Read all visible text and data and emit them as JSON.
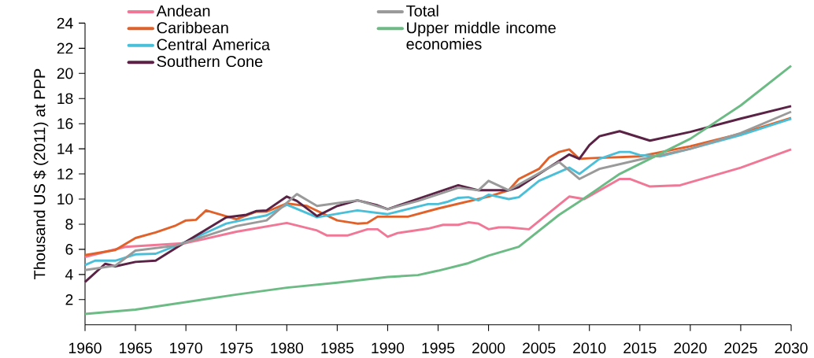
{
  "chart_data": {
    "type": "line",
    "ylabel": "Thousand US $ (2011) at PPP",
    "xlim": [
      1960,
      2030
    ],
    "xticks": [
      1960,
      1965,
      1970,
      1975,
      1980,
      1985,
      1990,
      1995,
      2000,
      2005,
      2010,
      2015,
      2020,
      2025,
      2030
    ],
    "ylim": [
      0,
      24
    ],
    "yticks": [
      2,
      4,
      6,
      8,
      10,
      12,
      14,
      16,
      18,
      20,
      22,
      24
    ],
    "grid": false,
    "legend": "top left",
    "marker": "none",
    "line_style": "solid",
    "series": [
      {
        "name": "Andean",
        "color": "#f07896",
        "x": [
          1960,
          1964,
          1970,
          1975,
          1980,
          1982,
          1983,
          1984,
          1986,
          1988,
          1989,
          1990,
          1991,
          1994,
          1995.5,
          1997,
          1998,
          1999,
          2000,
          2001,
          2002,
          2004,
          2008,
          2009.5,
          2013,
          2014,
          2016,
          2019,
          2025,
          2030
        ],
        "values": [
          5.4,
          6.2,
          6.5,
          7.4,
          8.1,
          7.7,
          7.5,
          7.1,
          7.1,
          7.6,
          7.6,
          7.0,
          7.3,
          7.65,
          7.95,
          7.95,
          8.15,
          8.05,
          7.6,
          7.75,
          7.75,
          7.6,
          10.2,
          10.0,
          11.6,
          11.6,
          11.0,
          11.1,
          12.5,
          13.95
        ]
      },
      {
        "name": "Caribbean",
        "color": "#e0622a",
        "x": [
          1960,
          1963,
          1965,
          1967,
          1969,
          1970,
          1971,
          1972,
          1975,
          1977,
          1978,
          1980,
          1982,
          1985,
          1987,
          1988,
          1989,
          1992,
          1995,
          2000,
          2002,
          2003,
          2005,
          2006,
          2007,
          2008,
          2009,
          2010,
          2015,
          2020,
          2025,
          2030
        ],
        "values": [
          5.55,
          5.95,
          6.9,
          7.35,
          7.9,
          8.3,
          8.35,
          9.1,
          8.4,
          9.0,
          9.0,
          9.65,
          9.45,
          8.3,
          8.05,
          8.1,
          8.6,
          8.6,
          9.25,
          10.2,
          10.7,
          11.6,
          12.4,
          13.3,
          13.75,
          13.95,
          13.2,
          13.25,
          13.4,
          14.2,
          15.2,
          16.45
        ]
      },
      {
        "name": "Central America",
        "color": "#4bbfd8",
        "x": [
          1960,
          1961,
          1963,
          1965,
          1967,
          1970,
          1974,
          1976,
          1978,
          1980,
          1983,
          1987,
          1990,
          1994,
          1995,
          1996,
          1997,
          1998,
          1999,
          2000,
          2002,
          2003,
          2005,
          2008,
          2009,
          2011,
          2013,
          2014,
          2015,
          2017,
          2020,
          2025,
          2030
        ],
        "values": [
          4.75,
          5.1,
          5.1,
          5.6,
          5.65,
          6.6,
          8.05,
          8.4,
          8.7,
          9.55,
          8.55,
          9.1,
          8.8,
          9.6,
          9.6,
          9.8,
          10.1,
          10.15,
          9.9,
          10.35,
          10.0,
          10.15,
          11.45,
          12.5,
          12.0,
          13.2,
          13.75,
          13.75,
          13.5,
          13.4,
          14.0,
          15.1,
          16.4
        ]
      },
      {
        "name": "Southern Cone",
        "color": "#5a2345",
        "x": [
          1960,
          1962,
          1963,
          1965,
          1967,
          1970,
          1974,
          1976,
          1977,
          1978,
          1980,
          1981,
          1983,
          1985,
          1987,
          1989,
          1990,
          1997,
          1999,
          2002,
          2003,
          2008,
          2009,
          2010,
          2011,
          2013,
          2016,
          2020,
          2025,
          2030
        ],
        "values": [
          3.4,
          4.85,
          4.65,
          5.0,
          5.1,
          6.6,
          8.55,
          8.75,
          9.05,
          9.1,
          10.2,
          9.85,
          8.65,
          9.45,
          9.9,
          9.5,
          9.2,
          11.1,
          10.7,
          10.7,
          10.95,
          13.55,
          13.2,
          14.3,
          15.0,
          15.4,
          14.65,
          15.35,
          16.4,
          17.4
        ]
      },
      {
        "name": "Total",
        "color": "#9a9a9a",
        "x": [
          1960,
          1963,
          1965,
          1969,
          1975,
          1978,
          1980,
          1981,
          1983,
          1987,
          1990,
          1993,
          1997,
          1999,
          2000,
          2002,
          2007,
          2009,
          2011,
          2015,
          2020,
          2025,
          2030
        ],
        "values": [
          4.35,
          4.7,
          5.9,
          6.3,
          7.85,
          8.3,
          9.7,
          10.4,
          9.45,
          9.9,
          9.2,
          9.85,
          10.9,
          10.7,
          11.45,
          10.7,
          12.95,
          11.6,
          12.4,
          13.15,
          14.0,
          15.25,
          16.95
        ]
      },
      {
        "name": "Upper middle income economies",
        "color": "#6cbb85",
        "x": [
          1960,
          1965,
          1970,
          1975,
          1980,
          1985,
          1990,
          1993,
          1995,
          1998,
          2000,
          2003,
          2007,
          2009,
          2013,
          2016,
          2020,
          2025,
          2030
        ],
        "values": [
          0.86,
          1.2,
          1.8,
          2.4,
          2.95,
          3.35,
          3.8,
          3.95,
          4.3,
          4.9,
          5.5,
          6.2,
          8.75,
          9.8,
          12.0,
          13.2,
          14.8,
          17.45,
          20.6
        ]
      }
    ]
  }
}
